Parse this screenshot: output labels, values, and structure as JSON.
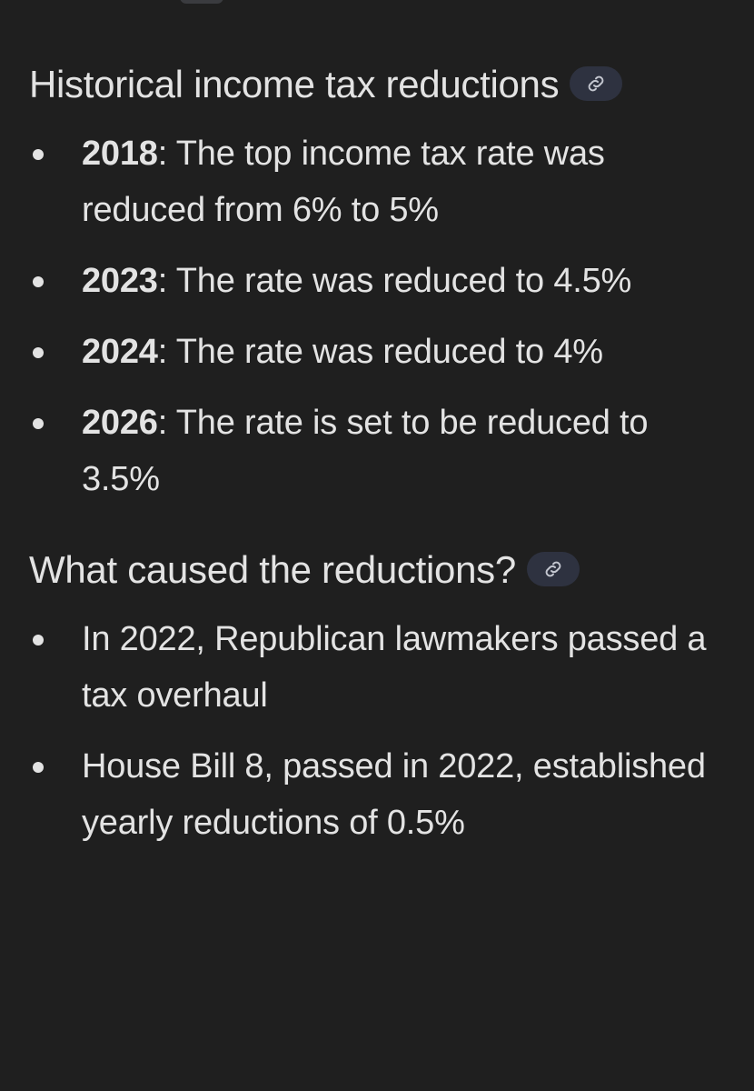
{
  "sections": [
    {
      "heading": "Historical income tax reductions",
      "items": [
        {
          "label": "2018",
          "text": ": The top income tax rate was reduced from 6% to 5%"
        },
        {
          "label": "2023",
          "text": ": The rate was reduced to 4.5%"
        },
        {
          "label": "2024",
          "text": ": The rate was reduced to 4%"
        },
        {
          "label": "2026",
          "text": ": The rate is set to be reduced to 3.5%"
        }
      ]
    },
    {
      "heading": "What caused the reductions?",
      "items": [
        {
          "text": "In 2022, Republican lawmakers passed a tax overhaul"
        },
        {
          "text": "House Bill 8, passed in 2022, established yearly reductions of 0.5%"
        }
      ]
    }
  ]
}
